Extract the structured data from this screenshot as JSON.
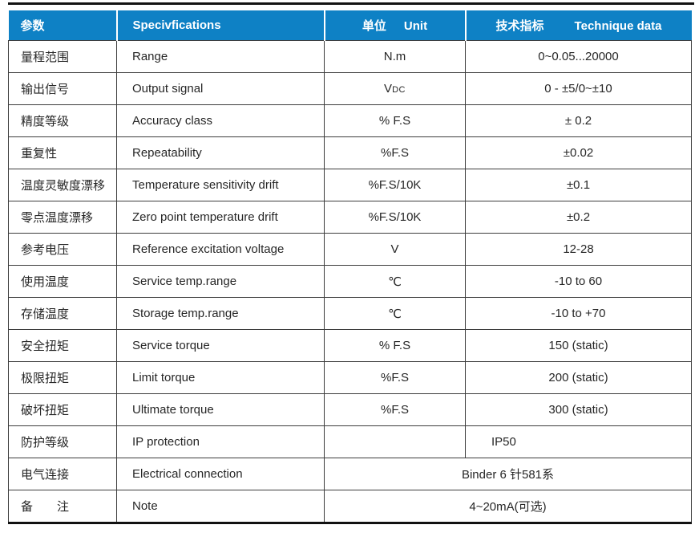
{
  "table": {
    "header": {
      "param": "参数",
      "spec": "Specivfications",
      "unit_zh": "单位",
      "unit_en": "Unit",
      "data_zh": "技术指标",
      "data_en": "Technique data"
    },
    "rows": [
      {
        "param_zh": "量程范围",
        "param_en": "Range",
        "unit": "N.m",
        "value": "0~0.05...20000"
      },
      {
        "param_zh": "输出信号",
        "param_en": "Output signal",
        "unit": "V",
        "unit_sub": "DC",
        "value": "0 - ±5/0~±10"
      },
      {
        "param_zh": "精度等级",
        "param_en": "Accuracy class",
        "unit": "% F.S",
        "value": "± 0.2"
      },
      {
        "param_zh": "重复性",
        "param_en": "Repeatability",
        "unit": "%F.S",
        "value": "±0.02"
      },
      {
        "param_zh": "温度灵敏度漂移",
        "param_en": "Temperature sensitivity drift",
        "unit": "%F.S/10K",
        "value": "±0.1"
      },
      {
        "param_zh": "零点温度漂移",
        "param_en": "Zero point temperature drift",
        "unit": "%F.S/10K",
        "value": "±0.2"
      },
      {
        "param_zh": "参考电压",
        "param_en": "Reference excitation voltage",
        "unit": "V",
        "value": "12-28"
      },
      {
        "param_zh": "使用温度",
        "param_en": "Service temp.range",
        "unit": "℃",
        "value": "-10 to 60"
      },
      {
        "param_zh": "存储温度",
        "param_en": "Storage temp.range",
        "unit": "℃",
        "value": "-10 to +70"
      },
      {
        "param_zh": "安全扭矩",
        "param_en": "Service torque",
        "unit": "% F.S",
        "value": "150 (static)"
      },
      {
        "param_zh": "极限扭矩",
        "param_en": "Limit torque",
        "unit": "%F.S",
        "value": "200 (static)"
      },
      {
        "param_zh": "破坏扭矩",
        "param_en": "Ultimate torque",
        "unit": "",
        "value": "300 (static)",
        "unit2": "%F.S"
      },
      {
        "param_zh": "防护等级",
        "param_en": "IP protection",
        "unit": "",
        "value": "IP50",
        "value_align": "left"
      },
      {
        "param_zh": "电气连接",
        "param_en": "Electrical connection",
        "span": true,
        "value": "Binder 6 针581系"
      },
      {
        "param_zh": "备　　注",
        "param_en": "Note",
        "span": true,
        "value": "4~20mA(可选)"
      }
    ],
    "colors": {
      "header_bg": "#0e81c5",
      "header_text": "#ffffff",
      "body_text": "#262626",
      "border": "#3d3d3d"
    }
  }
}
